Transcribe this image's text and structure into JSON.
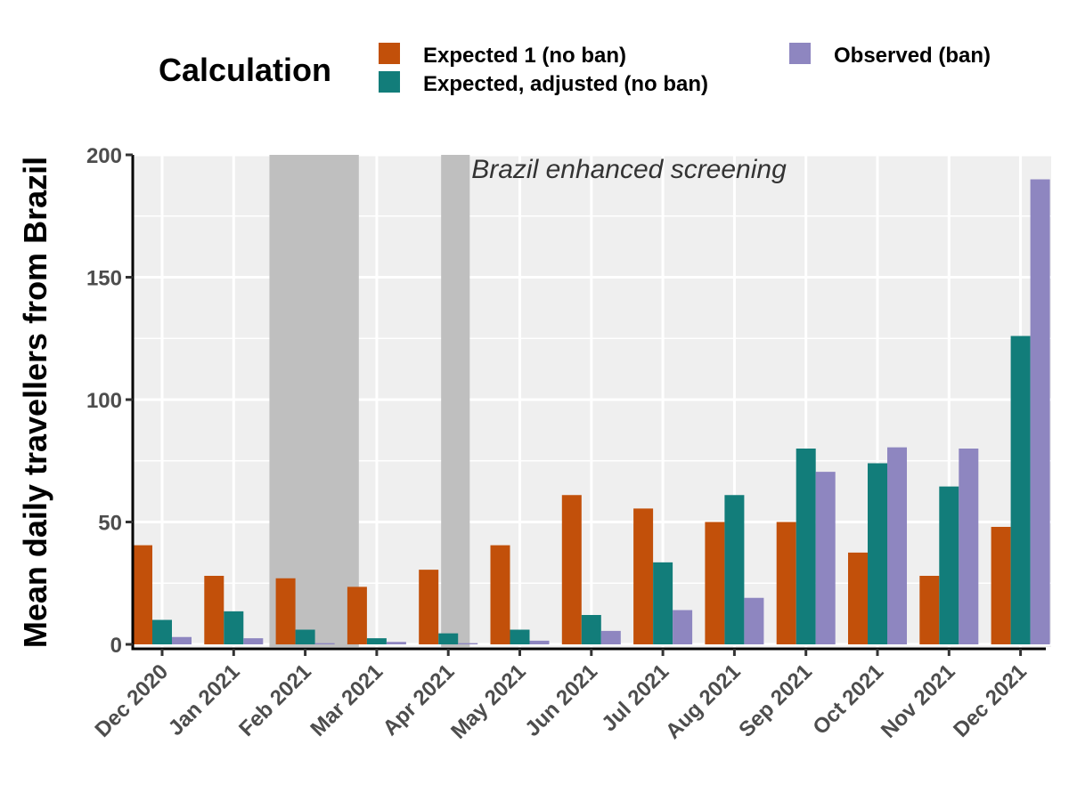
{
  "chart_data": {
    "type": "bar",
    "ylabel": "Mean daily travellers from Brazil",
    "xlabel": "",
    "ylim": [
      0,
      200
    ],
    "yticks": [
      0,
      50,
      100,
      150,
      200
    ],
    "grid": true,
    "legend": {
      "title": "Calculation",
      "placement": "top"
    },
    "annotation": "Brazil enhanced screening",
    "shaded_periods": [
      {
        "from_month_index": 1.5,
        "to_month_index": 2.75
      },
      {
        "from_month_index": 3.9,
        "to_month_index": 4.3
      }
    ],
    "categories": [
      "Dec 2020",
      "Jan 2021",
      "Feb 2021",
      "Mar 2021",
      "Apr 2021",
      "May 2021",
      "Jun 2021",
      "Jul 2021",
      "Aug 2021",
      "Sep 2021",
      "Oct 2021",
      "Nov 2021",
      "Dec 2021"
    ],
    "series": [
      {
        "name": "Expected 1 (no ban)",
        "color": "#c2500a",
        "values": [
          40.5,
          28,
          27,
          23.5,
          30.5,
          40.5,
          61,
          55.5,
          50,
          50,
          37.5,
          28,
          48
        ]
      },
      {
        "name": "Expected, adjusted (no ban)",
        "color": "#127d7a",
        "values": [
          10,
          13.5,
          6,
          2.5,
          4.5,
          6,
          12,
          33.5,
          61,
          80,
          74,
          64.5,
          126
        ]
      },
      {
        "name": "Observed (ban)",
        "color": "#8e86c0",
        "values": [
          3,
          2.5,
          0.5,
          1,
          0.5,
          1.5,
          5.5,
          14,
          19,
          70.5,
          80.5,
          80,
          190
        ]
      }
    ]
  }
}
